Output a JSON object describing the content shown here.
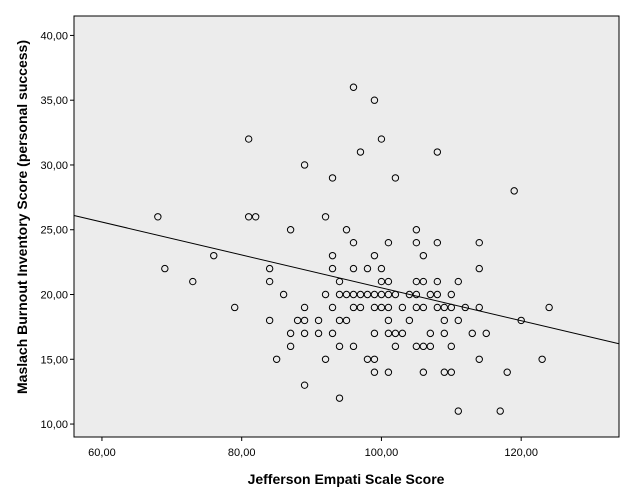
{
  "chart_data": {
    "type": "scatter",
    "title": "",
    "xlabel": "Jefferson Empati Scale Score",
    "ylabel": "Maslach Burnout Inventory Score (personal success)",
    "xlim": [
      56,
      134
    ],
    "ylim": [
      9,
      41.5
    ],
    "x_ticks": [
      60,
      80,
      100,
      120
    ],
    "y_ticks": [
      10,
      15,
      20,
      25,
      30,
      35,
      40
    ],
    "x_tick_labels": [
      "60,00",
      "80,00",
      "100,00",
      "120,00"
    ],
    "y_tick_labels": [
      "10,00",
      "15,00",
      "20,00",
      "25,00",
      "30,00",
      "35,00",
      "40,00"
    ],
    "grid": false,
    "colors": {
      "plot_background": "#ececec",
      "marker": "#000000",
      "fit_line": "#000000",
      "frame": "#000000"
    },
    "fit_line": {
      "x": [
        56,
        134
      ],
      "y": [
        26.1,
        16.2
      ]
    },
    "points": [
      [
        68,
        26
      ],
      [
        69,
        22
      ],
      [
        73,
        21
      ],
      [
        76,
        23
      ],
      [
        79,
        19
      ],
      [
        81,
        32
      ],
      [
        81,
        26
      ],
      [
        82,
        26
      ],
      [
        84,
        22
      ],
      [
        84,
        21
      ],
      [
        84,
        18
      ],
      [
        85,
        15
      ],
      [
        86,
        20
      ],
      [
        87,
        25
      ],
      [
        87,
        17
      ],
      [
        87,
        16
      ],
      [
        88,
        18
      ],
      [
        89,
        30
      ],
      [
        89,
        19
      ],
      [
        89,
        18
      ],
      [
        89,
        17
      ],
      [
        89,
        13
      ],
      [
        91,
        18
      ],
      [
        91,
        17
      ],
      [
        92,
        26
      ],
      [
        92,
        20
      ],
      [
        92,
        15
      ],
      [
        93,
        29
      ],
      [
        93,
        23
      ],
      [
        93,
        22
      ],
      [
        93,
        19
      ],
      [
        93,
        17
      ],
      [
        94,
        21
      ],
      [
        94,
        20
      ],
      [
        94,
        18
      ],
      [
        94,
        16
      ],
      [
        94,
        12
      ],
      [
        95,
        25
      ],
      [
        95,
        20
      ],
      [
        95,
        18
      ],
      [
        96,
        36
      ],
      [
        96,
        24
      ],
      [
        96,
        22
      ],
      [
        96,
        20
      ],
      [
        96,
        19
      ],
      [
        96,
        16
      ],
      [
        97,
        31
      ],
      [
        97,
        20
      ],
      [
        97,
        19
      ],
      [
        98,
        22
      ],
      [
        98,
        20
      ],
      [
        98,
        15
      ],
      [
        99,
        35
      ],
      [
        99,
        23
      ],
      [
        99,
        20
      ],
      [
        99,
        19
      ],
      [
        99,
        17
      ],
      [
        99,
        15
      ],
      [
        99,
        14
      ],
      [
        100,
        32
      ],
      [
        100,
        22
      ],
      [
        100,
        21
      ],
      [
        100,
        20
      ],
      [
        100,
        19
      ],
      [
        101,
        24
      ],
      [
        101,
        21
      ],
      [
        101,
        20
      ],
      [
        101,
        19
      ],
      [
        101,
        18
      ],
      [
        101,
        17
      ],
      [
        101,
        14
      ],
      [
        102,
        29
      ],
      [
        102,
        20
      ],
      [
        102,
        17
      ],
      [
        102,
        16
      ],
      [
        103,
        19
      ],
      [
        103,
        17
      ],
      [
        104,
        20
      ],
      [
        104,
        18
      ],
      [
        105,
        25
      ],
      [
        105,
        24
      ],
      [
        105,
        21
      ],
      [
        105,
        20
      ],
      [
        105,
        19
      ],
      [
        105,
        16
      ],
      [
        106,
        23
      ],
      [
        106,
        21
      ],
      [
        106,
        19
      ],
      [
        106,
        16
      ],
      [
        106,
        14
      ],
      [
        107,
        20
      ],
      [
        107,
        17
      ],
      [
        107,
        16
      ],
      [
        108,
        31
      ],
      [
        108,
        24
      ],
      [
        108,
        21
      ],
      [
        108,
        20
      ],
      [
        108,
        19
      ],
      [
        109,
        19
      ],
      [
        109,
        18
      ],
      [
        109,
        17
      ],
      [
        109,
        14
      ],
      [
        110,
        20
      ],
      [
        110,
        19
      ],
      [
        110,
        16
      ],
      [
        110,
        14
      ],
      [
        111,
        21
      ],
      [
        111,
        18
      ],
      [
        111,
        11
      ],
      [
        112,
        19
      ],
      [
        113,
        17
      ],
      [
        114,
        24
      ],
      [
        114,
        22
      ],
      [
        114,
        19
      ],
      [
        114,
        15
      ],
      [
        115,
        17
      ],
      [
        117,
        11
      ],
      [
        118,
        14
      ],
      [
        119,
        28
      ],
      [
        120,
        18
      ],
      [
        123,
        15
      ],
      [
        124,
        19
      ]
    ]
  }
}
